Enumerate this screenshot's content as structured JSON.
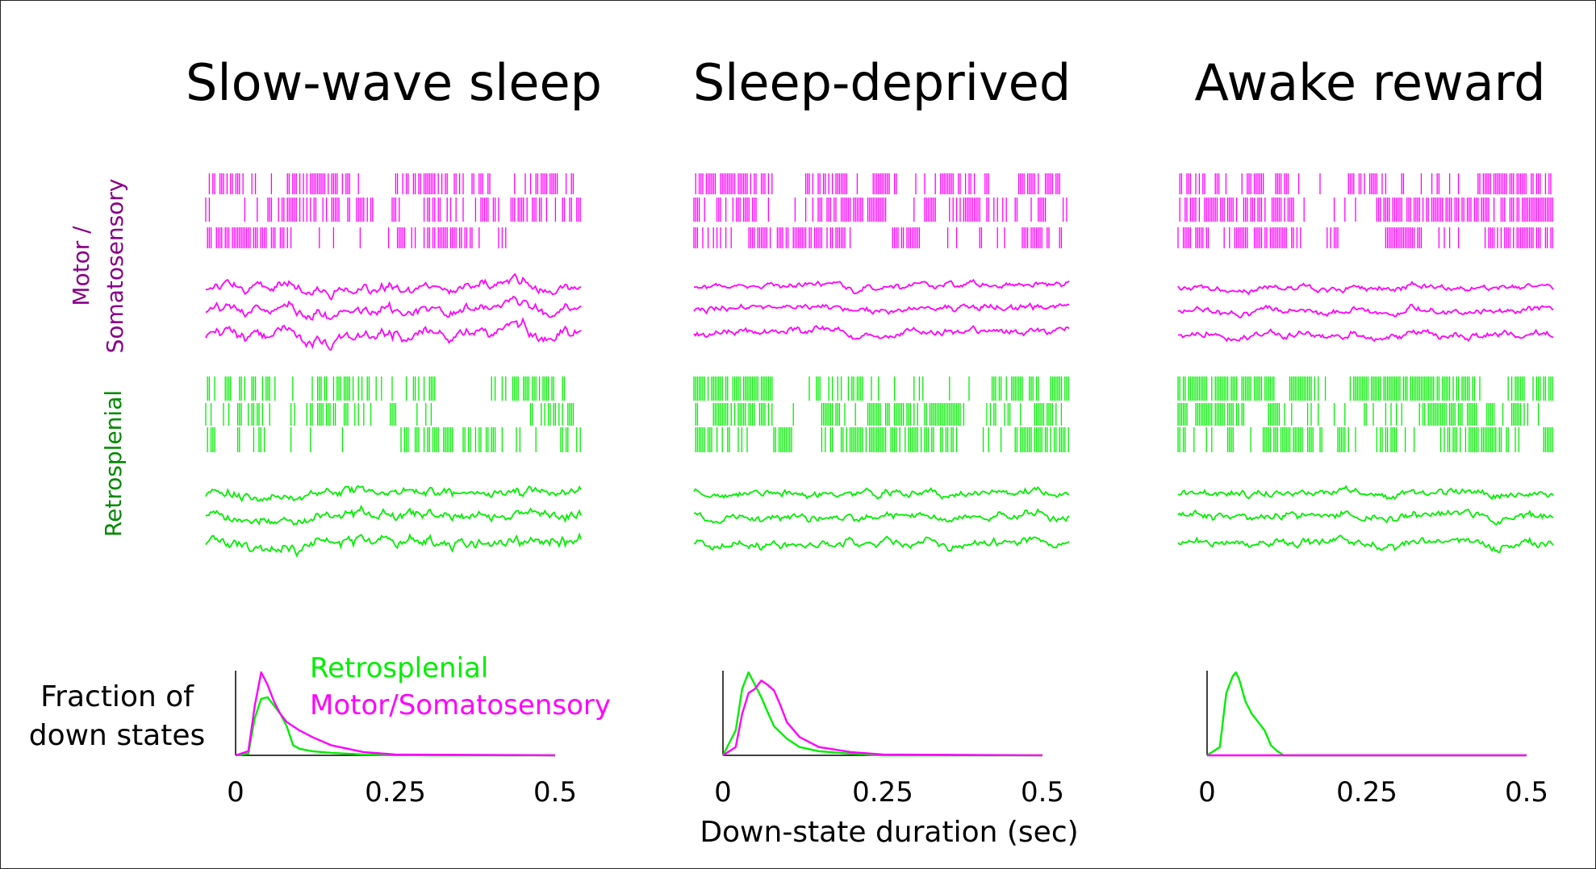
{
  "colors": {
    "motor": "#ff00ff",
    "motor_label": "#880088",
    "retro": "#00ee00",
    "retro_label": "#008800",
    "text": "#000000",
    "axis": "#000000"
  },
  "row_labels": {
    "motor_line1": "Motor /",
    "motor_line2": "Somatosensory",
    "retro": "Retrosplenial"
  },
  "shared": {
    "ylabel_line1": "Fraction of",
    "ylabel_line2": "down states",
    "xlabel": "Down-state duration (sec)"
  },
  "legend": {
    "placement": "top-right of first histogram",
    "entries": [
      {
        "label": "Retrosplenial",
        "color": "#00ee00"
      },
      {
        "label": "Motor/Somatosensory",
        "color": "#ff00ff"
      }
    ]
  },
  "chart_data": [
    {
      "type": "line",
      "title": "Slow-wave sleep",
      "xlim": [
        0,
        0.5
      ],
      "x_ticks": [
        "0",
        "0.25",
        "0.5"
      ],
      "grid": false,
      "raster_density": {
        "motor": 0.55,
        "retro": 0.5
      },
      "series": [
        {
          "name": "Retrosplenial",
          "x": [
            0,
            0.02,
            0.03,
            0.04,
            0.05,
            0.06,
            0.07,
            0.08,
            0.09,
            0.1,
            0.12,
            0.15,
            0.2,
            0.3,
            0.5
          ],
          "y": [
            0,
            0.02,
            0.45,
            0.68,
            0.7,
            0.6,
            0.5,
            0.35,
            0.12,
            0.08,
            0.05,
            0.03,
            0.01,
            0,
            0
          ]
        },
        {
          "name": "Motor/Somatosensory",
          "x": [
            0,
            0.02,
            0.03,
            0.04,
            0.05,
            0.06,
            0.07,
            0.08,
            0.1,
            0.12,
            0.15,
            0.2,
            0.25,
            0.5
          ],
          "y": [
            0,
            0.05,
            0.6,
            1.0,
            0.85,
            0.65,
            0.5,
            0.4,
            0.3,
            0.22,
            0.12,
            0.04,
            0.01,
            0
          ]
        }
      ]
    },
    {
      "type": "line",
      "title": "Sleep-deprived",
      "xlim": [
        0,
        0.5
      ],
      "x_ticks": [
        "0",
        "0.25",
        "0.5"
      ],
      "grid": false,
      "raster_density": {
        "motor": 0.72,
        "retro": 0.8
      },
      "series": [
        {
          "name": "Retrosplenial",
          "x": [
            0,
            0.02,
            0.03,
            0.04,
            0.05,
            0.06,
            0.07,
            0.08,
            0.1,
            0.12,
            0.15,
            0.2,
            0.25,
            0.5
          ],
          "y": [
            0,
            0.3,
            0.8,
            1.0,
            0.85,
            0.7,
            0.52,
            0.35,
            0.2,
            0.1,
            0.05,
            0.02,
            0,
            0
          ]
        },
        {
          "name": "Motor/Somatosensory",
          "x": [
            0,
            0.02,
            0.03,
            0.04,
            0.05,
            0.06,
            0.07,
            0.08,
            0.09,
            0.1,
            0.12,
            0.15,
            0.2,
            0.25,
            0.5
          ],
          "y": [
            0,
            0.1,
            0.5,
            0.75,
            0.8,
            0.9,
            0.85,
            0.78,
            0.6,
            0.4,
            0.22,
            0.1,
            0.04,
            0.01,
            0
          ]
        }
      ]
    },
    {
      "type": "line",
      "title": "Awake reward",
      "xlim": [
        0,
        0.5
      ],
      "x_ticks": [
        "0",
        "0.25",
        "0.5"
      ],
      "grid": false,
      "raster_density": {
        "motor": 0.74,
        "retro": 0.8
      },
      "series": [
        {
          "name": "Retrosplenial",
          "x": [
            0,
            0.02,
            0.03,
            0.04,
            0.045,
            0.05,
            0.06,
            0.07,
            0.08,
            0.09,
            0.1,
            0.11,
            0.12,
            0.5
          ],
          "y": [
            0,
            0.1,
            0.75,
            0.95,
            1.0,
            0.92,
            0.65,
            0.5,
            0.4,
            0.3,
            0.12,
            0.05,
            0,
            0
          ]
        },
        {
          "name": "Motor/Somatosensory",
          "x": [
            0,
            0.5
          ],
          "y": [
            0,
            0
          ]
        }
      ]
    }
  ]
}
